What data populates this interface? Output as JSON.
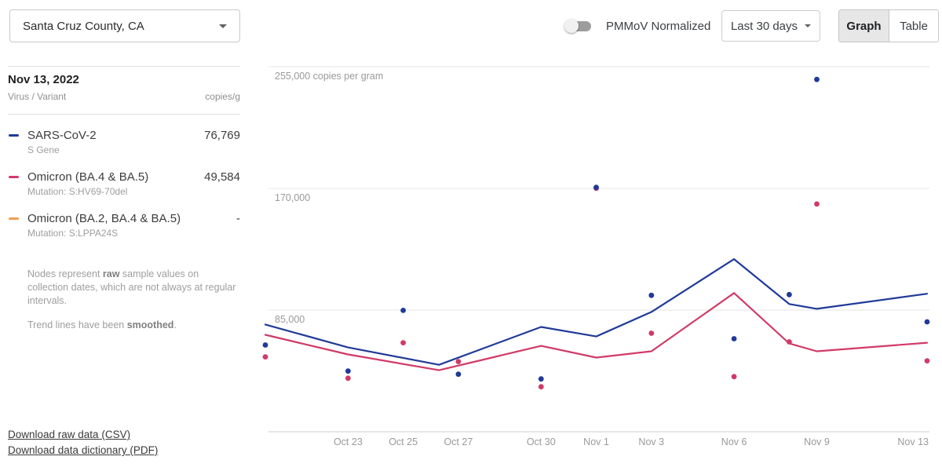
{
  "header": {
    "location_selector": {
      "value": "Santa Cruz County, CA"
    },
    "pmmov_toggle": {
      "label": "PMMoV Normalized",
      "state": "off"
    },
    "range_selector": {
      "value": "Last 30 days"
    },
    "view_tabs": [
      {
        "label": "Graph",
        "active": true
      },
      {
        "label": "Table",
        "active": false
      }
    ]
  },
  "sidebar": {
    "date": "Nov 13, 2022",
    "col_virus": "Virus / Variant",
    "col_value": "copies/g",
    "legend": [
      {
        "name": "SARS-CoV-2",
        "subtitle": "S Gene",
        "value": "76,769",
        "color": "#203a98"
      },
      {
        "name": "Omicron (BA.4 & BA.5)",
        "subtitle": "Mutation: S:HV69-70del",
        "value": "49,584",
        "color": "#d13a67"
      },
      {
        "name": "Omicron (BA.2, BA.4 & BA.5)",
        "subtitle": "Mutation: S:LPPA24S",
        "value": "-",
        "color": "#efa04c"
      }
    ],
    "notes": [
      {
        "pre": "Nodes represent ",
        "bold": "raw",
        "post": " sample values on collection dates, which are not always at regular intervals."
      },
      {
        "pre": "Trend lines have been ",
        "bold": "smoothed",
        "post": "."
      }
    ],
    "downloads": [
      {
        "label": "Download raw data (CSV)"
      },
      {
        "label": "Download data dictionary (PDF)"
      }
    ]
  },
  "chart_data": {
    "type": "scatter",
    "unit": "copies per gram",
    "start_date": "Oct 20, 2022",
    "grid": "horizontal-only",
    "ylim": [
      0,
      283000
    ],
    "y_ticks": [
      {
        "value": 255000,
        "label": "255,000 copies per gram"
      },
      {
        "value": 170000,
        "label": "170,000"
      },
      {
        "value": 85000,
        "label": "85,000"
      }
    ],
    "x_ticks": [
      {
        "day": 3,
        "label": "Oct 23"
      },
      {
        "day": 5,
        "label": "Oct 25"
      },
      {
        "day": 7,
        "label": "Oct 27"
      },
      {
        "day": 10,
        "label": "Oct 30"
      },
      {
        "day": 12,
        "label": "Nov 1"
      },
      {
        "day": 14,
        "label": "Nov 3"
      },
      {
        "day": 17,
        "label": "Nov 6"
      },
      {
        "day": 20,
        "label": "Nov 9"
      },
      {
        "day": 24,
        "label": "Nov 13",
        "align": "end"
      }
    ],
    "series": [
      {
        "name": "SARS-CoV-2 (S Gene)",
        "color": "#203a98",
        "points": [
          {
            "day": 0,
            "value": 60600
          },
          {
            "day": 3,
            "value": 42400
          },
          {
            "day": 5,
            "value": 84800
          },
          {
            "day": 7,
            "value": 40200
          },
          {
            "day": 10,
            "value": 36900
          },
          {
            "day": 12,
            "value": 170700
          },
          {
            "day": 14,
            "value": 95300
          },
          {
            "day": 17,
            "value": 65000
          },
          {
            "day": 19,
            "value": 95800
          },
          {
            "day": 20,
            "value": 246100
          },
          {
            "day": 24,
            "value": 76769
          }
        ],
        "trend": [
          {
            "day": 0,
            "value": 74900
          },
          {
            "day": 3,
            "value": 58900
          },
          {
            "day": 6.3,
            "value": 46800
          },
          {
            "day": 10,
            "value": 73200
          },
          {
            "day": 12,
            "value": 66600
          },
          {
            "day": 14,
            "value": 83700
          },
          {
            "day": 17,
            "value": 120600
          },
          {
            "day": 19,
            "value": 89200
          },
          {
            "day": 20,
            "value": 85900
          },
          {
            "day": 24,
            "value": 96400
          }
        ]
      },
      {
        "name": "Omicron (BA.4 & BA.5)",
        "color": "#d13a67",
        "points": [
          {
            "day": 0,
            "value": 52300
          },
          {
            "day": 3,
            "value": 37400
          },
          {
            "day": 5,
            "value": 62200
          },
          {
            "day": 7,
            "value": 49000
          },
          {
            "day": 10,
            "value": 31400
          },
          {
            "day": 12,
            "value": 170100
          },
          {
            "day": 14,
            "value": 68800
          },
          {
            "day": 17,
            "value": 38500
          },
          {
            "day": 19,
            "value": 62800
          },
          {
            "day": 20,
            "value": 159100
          },
          {
            "day": 24,
            "value": 49584
          }
        ],
        "trend": [
          {
            "day": 0,
            "value": 67700
          },
          {
            "day": 3,
            "value": 54000
          },
          {
            "day": 6.3,
            "value": 43000
          },
          {
            "day": 10,
            "value": 60000
          },
          {
            "day": 12,
            "value": 51800
          },
          {
            "day": 14,
            "value": 56200
          },
          {
            "day": 17,
            "value": 96900
          },
          {
            "day": 19,
            "value": 61700
          },
          {
            "day": 20,
            "value": 56200
          },
          {
            "day": 24,
            "value": 62200
          }
        ]
      }
    ]
  }
}
